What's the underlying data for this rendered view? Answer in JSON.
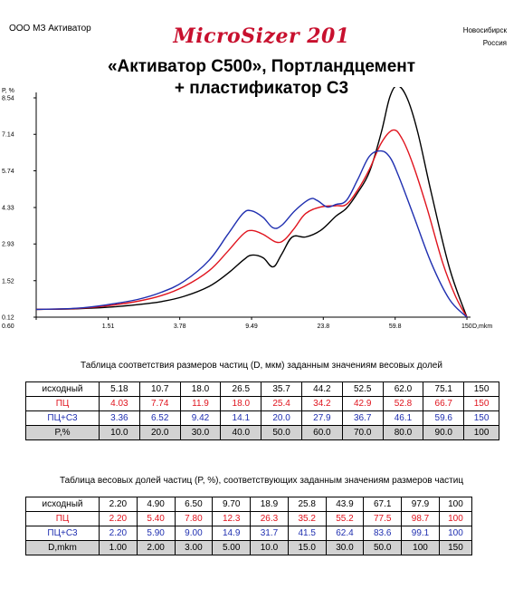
{
  "header": {
    "company": "ООО МЗ Активатор",
    "brand": "MicroSizer 201",
    "city_line1": "Новосибирск",
    "city_line2": "Россия",
    "title_line1": "«Активатор С500», Портландцемент",
    "title_line2": "+ пластификатор С3"
  },
  "chart_data": {
    "type": "line",
    "ylabel": "P, %",
    "xlabel": "D,mkm",
    "x_scale": "log",
    "x_ticks": [
      "0.60",
      "1.51",
      "3.78",
      "9.49",
      "23.8",
      "59.8",
      "150"
    ],
    "y_ticks": [
      "0.12",
      "1.52",
      "2.93",
      "4.33",
      "5.74",
      "7.14",
      "8.54"
    ],
    "xlim": [
      0.6,
      150
    ],
    "ylim": [
      0.12,
      8.54
    ],
    "grid": false,
    "colors": {
      "ref": "#000000",
      "pc": "#e0141e",
      "pcs": "#1f2fb0"
    },
    "series": [
      {
        "key": "ref",
        "color": "#000000",
        "x": [
          0.6,
          1.0,
          1.5,
          2.2,
          3.0,
          4.0,
          5.5,
          7.0,
          8.5,
          9.5,
          11.0,
          12.5,
          14.0,
          16.0,
          19.0,
          23.0,
          28.0,
          32.0,
          37.0,
          43.0,
          50.0,
          56.0,
          62.0,
          70.0,
          80.0,
          95.0,
          120.0,
          150.0
        ],
        "y": [
          0.42,
          0.44,
          0.5,
          0.6,
          0.72,
          0.92,
          1.3,
          1.8,
          2.3,
          2.5,
          2.4,
          2.05,
          2.55,
          3.2,
          3.2,
          3.45,
          4.0,
          4.3,
          4.9,
          5.7,
          7.2,
          8.6,
          9.0,
          8.5,
          7.2,
          4.9,
          2.0,
          0.12
        ]
      },
      {
        "key": "pc",
        "color": "#e0141e",
        "x": [
          0.6,
          1.0,
          1.5,
          2.2,
          3.0,
          4.0,
          5.5,
          7.0,
          8.5,
          9.5,
          11.0,
          13.0,
          14.5,
          16.5,
          19.0,
          23.0,
          28.0,
          32.0,
          37.0,
          43.0,
          50.0,
          58.0,
          65.0,
          75.0,
          90.0,
          110.0,
          130.0,
          150.0
        ],
        "y": [
          0.42,
          0.45,
          0.56,
          0.73,
          0.95,
          1.3,
          1.9,
          2.65,
          3.3,
          3.45,
          3.3,
          3.0,
          3.1,
          3.55,
          4.1,
          4.35,
          4.4,
          4.45,
          5.0,
          5.8,
          6.8,
          7.3,
          7.0,
          6.0,
          4.3,
          2.2,
          0.9,
          0.12
        ]
      },
      {
        "key": "pcs",
        "color": "#1f2fb0",
        "x": [
          0.6,
          1.0,
          1.5,
          2.2,
          3.0,
          4.0,
          5.5,
          7.0,
          8.5,
          9.5,
          11.0,
          12.5,
          14.0,
          16.5,
          20.0,
          22.0,
          25.0,
          28.0,
          32.0,
          37.0,
          43.0,
          50.0,
          56.0,
          62.0,
          75.0,
          95.0,
          120.0,
          150.0
        ],
        "y": [
          0.42,
          0.46,
          0.6,
          0.8,
          1.08,
          1.5,
          2.3,
          3.3,
          4.1,
          4.2,
          3.95,
          3.55,
          3.65,
          4.2,
          4.65,
          4.6,
          4.35,
          4.45,
          4.6,
          5.4,
          6.3,
          6.5,
          6.25,
          5.6,
          4.1,
          2.2,
          0.8,
          0.12
        ]
      }
    ]
  },
  "table1": {
    "caption": "Таблица соответствия размеров частиц (D, мкм) заданным значениям весовых долей",
    "rows": [
      {
        "label": "исходный",
        "values": [
          "5.18",
          "10.7",
          "18.0",
          "26.5",
          "35.7",
          "44.2",
          "52.5",
          "62.0",
          "75.1",
          "150"
        ]
      },
      {
        "label": "ПЦ",
        "values": [
          "4.03",
          "7.74",
          "11.9",
          "18.0",
          "25.4",
          "34.2",
          "42.9",
          "52.8",
          "66.7",
          "150"
        ]
      },
      {
        "label": "ПЦ+С3",
        "values": [
          "3.36",
          "6.52",
          "9.42",
          "14.1",
          "20.0",
          "27.9",
          "36.7",
          "46.1",
          "59.6",
          "150"
        ]
      },
      {
        "label": "P,%",
        "values": [
          "10.0",
          "20.0",
          "30.0",
          "40.0",
          "50.0",
          "60.0",
          "70.0",
          "80.0",
          "90.0",
          "100"
        ]
      }
    ]
  },
  "table2": {
    "caption": "Таблица весовых долей частиц (P, %), соответствующих заданным значениям размеров частиц",
    "rows": [
      {
        "label": "исходный",
        "values": [
          "2.20",
          "4.90",
          "6.50",
          "9.70",
          "18.9",
          "25.8",
          "43.9",
          "67.1",
          "97.9",
          "100"
        ]
      },
      {
        "label": "ПЦ",
        "values": [
          "2.20",
          "5.40",
          "7.80",
          "12.3",
          "26.3",
          "35.2",
          "55.2",
          "77.5",
          "98.7",
          "100"
        ]
      },
      {
        "label": "ПЦ+С3",
        "values": [
          "2.20",
          "5.90",
          "9.00",
          "14.9",
          "31.7",
          "41.5",
          "62.4",
          "83.6",
          "99.1",
          "100"
        ]
      },
      {
        "label": "D,mkm",
        "values": [
          "1.00",
          "2.00",
          "3.00",
          "5.00",
          "10.0",
          "15.0",
          "30.0",
          "50.0",
          "100",
          "150"
        ]
      }
    ]
  }
}
